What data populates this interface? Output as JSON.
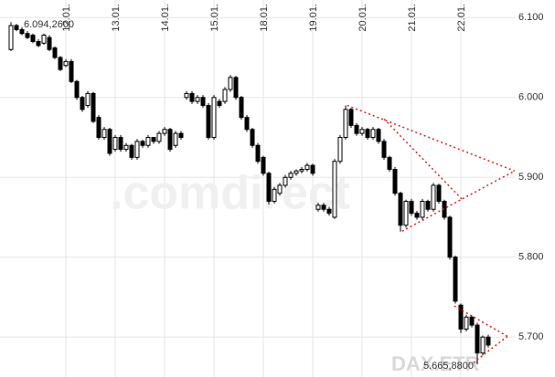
{
  "chart_data": {
    "type": "candlestick",
    "watermark": ".comdirect",
    "symbol": "DAX.ETR",
    "annotations": [
      {
        "text": "6.094,2600",
        "at": 0,
        "field": "high"
      },
      {
        "text": "5.665,8800",
        "at": 85,
        "field": "low"
      }
    ],
    "x": [
      0,
      1,
      2,
      3,
      4,
      5,
      6,
      7,
      8,
      9,
      10,
      11,
      12,
      13,
      14,
      15,
      16,
      17,
      18,
      19,
      20,
      21,
      22,
      23,
      24,
      25,
      26,
      27,
      28,
      29,
      30,
      31,
      32,
      33,
      34,
      35,
      36,
      37,
      38,
      39,
      40,
      41,
      42,
      43,
      44,
      45,
      46,
      47,
      48,
      49,
      50,
      51,
      52,
      53,
      54,
      55,
      56,
      57,
      58,
      59,
      60,
      61,
      62,
      63,
      64,
      65,
      66,
      67,
      68,
      69,
      70,
      71,
      72,
      73,
      74,
      75,
      76,
      77,
      78,
      79,
      80,
      81,
      82,
      83,
      84,
      85,
      86,
      87
    ],
    "open": [
      6060,
      6090,
      6085,
      6080,
      6078,
      6070,
      6068,
      6075,
      6062,
      6050,
      6040,
      6045,
      6020,
      6000,
      5990,
      6005,
      5975,
      5950,
      5960,
      5935,
      5950,
      5935,
      5940,
      5925,
      5945,
      5940,
      5950,
      5945,
      5955,
      5960,
      5940,
      5955,
      6000,
      6005,
      5995,
      6000,
      5990,
      5950,
      5995,
      5995,
      6010,
      6025,
      6000,
      5975,
      5960,
      5940,
      5925,
      5905,
      5870,
      5880,
      5890,
      5900,
      5905,
      5908,
      5910,
      5915,
      5860,
      5865,
      5860,
      5850,
      5920,
      5950,
      5985,
      5965,
      5955,
      5960,
      5950,
      5960,
      5945,
      5925,
      5910,
      5880,
      5840,
      5870,
      5855,
      5850,
      5870,
      5860,
      5890,
      5870,
      5850,
      5800,
      5740,
      5710,
      5725,
      5715,
      5680,
      5700
    ],
    "high": [
      6094.26,
      6092,
      6088,
      6083,
      6080,
      6073,
      6080,
      6078,
      6064,
      6052,
      6048,
      6048,
      6022,
      6002,
      6008,
      6007,
      5978,
      5963,
      5962,
      5953,
      5953,
      5943,
      5942,
      5948,
      5947,
      5953,
      5950,
      5958,
      5963,
      5962,
      5958,
      5958,
      6008,
      6008,
      6003,
      6003,
      5993,
      6003,
      5998,
      6013,
      6028,
      6027,
      6002,
      5978,
      5962,
      5943,
      5927,
      5907,
      5888,
      5893,
      5903,
      5908,
      5910,
      5913,
      5918,
      5917,
      5868,
      5868,
      5863,
      5923,
      5953,
      5990,
      5987,
      5968,
      5963,
      5962,
      5963,
      5962,
      5948,
      5927,
      5913,
      5882,
      5872,
      5873,
      5858,
      5873,
      5872,
      5893,
      5892,
      5872,
      5852,
      5802,
      5742,
      5728,
      5727,
      5718,
      5702,
      5703
    ],
    "low": [
      6058,
      6083,
      6078,
      6073,
      6068,
      6063,
      6066,
      6058,
      6048,
      6033,
      6038,
      6018,
      5997,
      5982,
      5987,
      5968,
      5947,
      5947,
      5927,
      5932,
      5932,
      5932,
      5922,
      5922,
      5937,
      5937,
      5942,
      5942,
      5952,
      5932,
      5937,
      5947,
      5997,
      5992,
      5992,
      5987,
      5947,
      5947,
      5987,
      5992,
      6007,
      5997,
      5972,
      5957,
      5937,
      5917,
      5902,
      5866,
      5867,
      5877,
      5887,
      5897,
      5902,
      5905,
      5907,
      5902,
      5857,
      5857,
      5852,
      5848,
      5917,
      5947,
      5962,
      5952,
      5952,
      5947,
      5947,
      5942,
      5922,
      5907,
      5877,
      5832,
      5837,
      5852,
      5847,
      5847,
      5857,
      5857,
      5867,
      5847,
      5797,
      5742,
      5705,
      5707,
      5712,
      5665.88,
      5677,
      5687
    ],
    "close": [
      6090,
      6085,
      6080,
      6075,
      6070,
      6065,
      6078,
      6060,
      6050,
      6035,
      6045,
      6020,
      6000,
      5985,
      6005,
      5970,
      5950,
      5960,
      5930,
      5950,
      5935,
      5940,
      5925,
      5945,
      5940,
      5950,
      5945,
      5955,
      5960,
      5935,
      5955,
      5950,
      6005,
      5995,
      6000,
      5990,
      5950,
      6000,
      5990,
      6010,
      6025,
      6000,
      5975,
      5960,
      5940,
      5920,
      5905,
      5870,
      5885,
      5890,
      5900,
      5905,
      5908,
      5910,
      5915,
      5905,
      5865,
      5860,
      5855,
      5920,
      5950,
      5985,
      5965,
      5955,
      5960,
      5950,
      5960,
      5945,
      5925,
      5910,
      5880,
      5840,
      5870,
      5855,
      5850,
      5870,
      5860,
      5890,
      5870,
      5850,
      5800,
      5745,
      5710,
      5725,
      5715,
      5680,
      5700,
      5690
    ],
    "up_color": "#ffffff",
    "down_color": "#000000",
    "edge_color": "#000000",
    "trendlines": [
      {
        "x": [
          61.3,
          91.8
        ],
        "y": [
          5990,
          5908
        ]
      },
      {
        "x": [
          68,
          82.2
        ],
        "y": [
          5973,
          5872.6
        ]
      },
      {
        "x": [
          71.3,
          91.8
        ],
        "y": [
          5832.6,
          5908
        ]
      },
      {
        "x": [
          80.8,
          90.5
        ],
        "y": [
          5739,
          5701
        ]
      },
      {
        "x": [
          84.3,
          90.5
        ],
        "y": [
          5668,
          5701
        ]
      }
    ],
    "trendline_color": "#e02020",
    "xlim": [
      -1,
      92
    ],
    "ylim": [
      5650,
      6122
    ],
    "xticks": [
      {
        "value": 10,
        "label": "12.01."
      },
      {
        "value": 19,
        "label": "13.01."
      },
      {
        "value": 28,
        "label": "14.01."
      },
      {
        "value": 37,
        "label": "15.01."
      },
      {
        "value": 46,
        "label": "18.01."
      },
      {
        "value": 55,
        "label": "19.01."
      },
      {
        "value": 64,
        "label": "20.01."
      },
      {
        "value": 73,
        "label": "21.01."
      },
      {
        "value": 82,
        "label": "22.01."
      }
    ],
    "yticks": [
      {
        "value": 5700,
        "label": "5.700"
      },
      {
        "value": 5800,
        "label": "5.800"
      },
      {
        "value": 5900,
        "label": "5.900"
      },
      {
        "value": 6000,
        "label": "6.000"
      },
      {
        "value": 6100,
        "label": "6.100"
      }
    ],
    "grid": true
  }
}
